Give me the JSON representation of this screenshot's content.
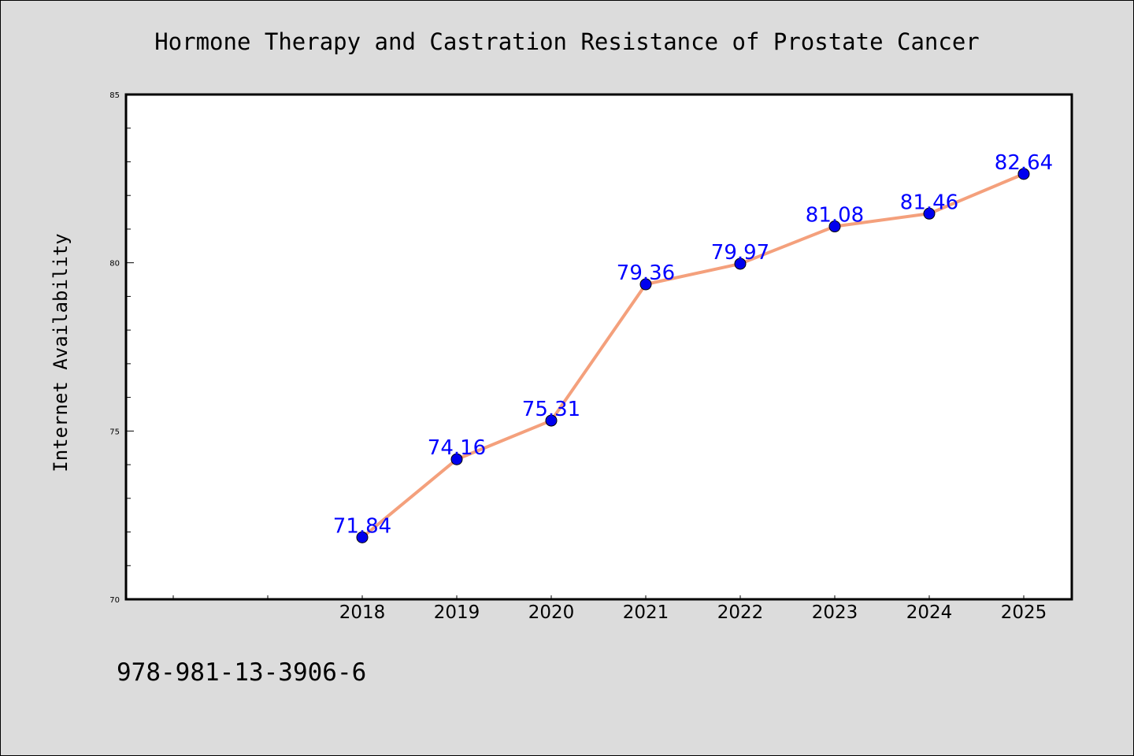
{
  "chart_data": {
    "type": "line",
    "title": "Hormone Therapy and Castration Resistance of Prostate Cancer",
    "xlabel": "",
    "ylabel": "Internet Availability",
    "categories": [
      "2018",
      "2019",
      "2020",
      "2021",
      "2022",
      "2023",
      "2024",
      "2025"
    ],
    "series": [
      {
        "values": [
          71.84,
          74.16,
          75.31,
          79.36,
          79.97,
          81.08,
          81.46,
          82.64
        ],
        "data_labels": [
          "71.84",
          "74.16",
          "75.31",
          "79.36",
          "79.97",
          "81.08",
          "81.46",
          "82.64"
        ],
        "line_color": "#f4a07c",
        "marker_color": "#0000ee",
        "label_color": "#0000ff"
      }
    ],
    "ylim": [
      70,
      85
    ],
    "y_ticks": [
      "70",
      "75",
      "80",
      "85"
    ],
    "grid": false,
    "legend": "none"
  },
  "footer": {
    "isbn": "978-981-13-3906-6"
  },
  "colors": {
    "background": "#dcdcdc",
    "plot_background": "#ffffff"
  }
}
